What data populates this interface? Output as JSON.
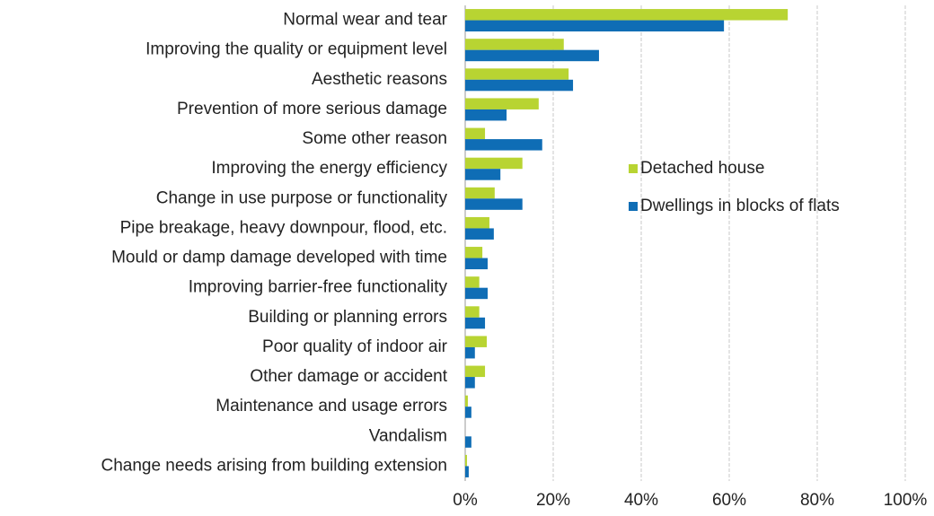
{
  "chart_data": {
    "type": "barh",
    "categories": [
      "Normal wear and tear",
      "Improving the quality or equipment level",
      "Aesthetic reasons",
      "Prevention of more serious damage",
      "Some other reason",
      "Improving the energy efficiency",
      "Change in use purpose or functionality",
      "Pipe breakage, heavy downpour, flood, etc.",
      "Mould or damp damage developed with time",
      "Improving barrier-free functionality",
      "Building or planning errors",
      "Poor quality of indoor air",
      "Other damage or accident",
      "Maintenance and usage errors",
      "Vandalism",
      "Change needs arising from building extension"
    ],
    "series": [
      {
        "name": "Detached house",
        "color": "#b8d432",
        "values": [
          73.3,
          22.4,
          23.5,
          16.7,
          4.5,
          13,
          6.7,
          5.5,
          3.9,
          3.2,
          3.2,
          4.9,
          4.5,
          0.6,
          0,
          0.4
        ]
      },
      {
        "name": "Dwellings in blocks of flats",
        "color": "#0f6db5",
        "values": [
          58.8,
          30.4,
          24.5,
          9.4,
          17.5,
          8,
          13,
          6.5,
          5.1,
          5.1,
          4.5,
          2.2,
          2.2,
          1.4,
          1.4,
          0.8
        ]
      }
    ],
    "xlim": [
      0,
      100
    ],
    "xticks": [
      {
        "value": 0,
        "label": "0%"
      },
      {
        "value": 20,
        "label": "20%"
      },
      {
        "value": 40,
        "label": "40%"
      },
      {
        "value": 60,
        "label": "60%"
      },
      {
        "value": 80,
        "label": "80%"
      },
      {
        "value": 100,
        "label": "100%"
      }
    ],
    "grid": true
  }
}
